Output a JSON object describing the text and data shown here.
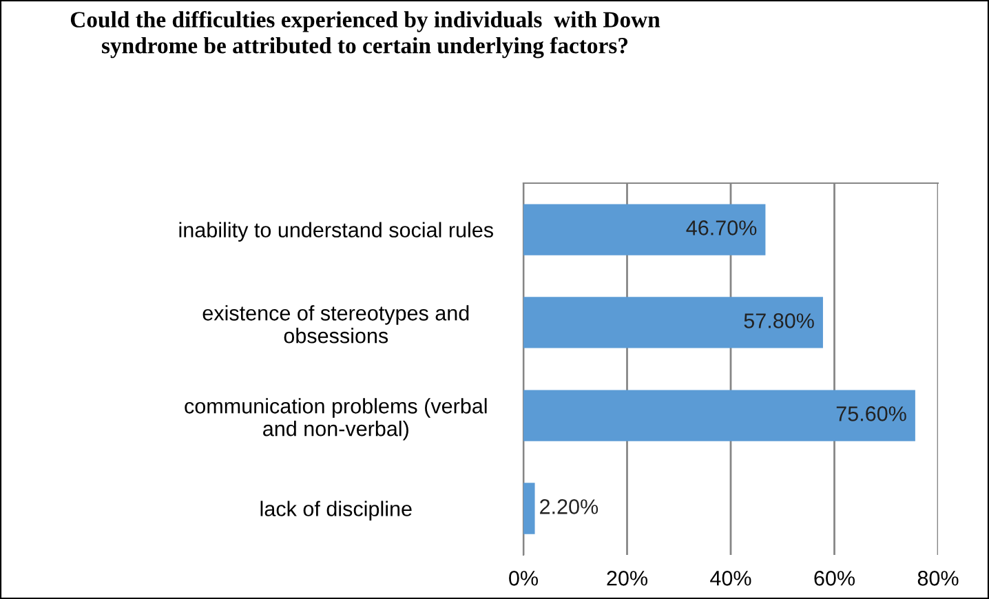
{
  "chart_data": {
    "type": "bar",
    "orientation": "horizontal",
    "title": "Could the difficulties experienced by individuals  with Down\nsyndrome be attributed to certain underlying factors?",
    "categories": [
      "inability to understand social rules",
      "existence of stereotypes and\nobsessions",
      "communication problems (verbal\nand non-verbal)",
      "lack of discipline"
    ],
    "values": [
      46.7,
      57.8,
      75.6,
      2.2
    ],
    "value_labels": [
      "46.70%",
      "57.80%",
      "75.60%",
      "2.20%"
    ],
    "color": "#5b9bd5",
    "xlim": [
      0,
      80
    ],
    "xticks": [
      {
        "value": 0,
        "label": "0%"
      },
      {
        "value": 20,
        "label": "20%"
      },
      {
        "value": 40,
        "label": "40%"
      },
      {
        "value": 60,
        "label": "60%"
      },
      {
        "value": 80,
        "label": "80%"
      }
    ],
    "grid": "x"
  }
}
